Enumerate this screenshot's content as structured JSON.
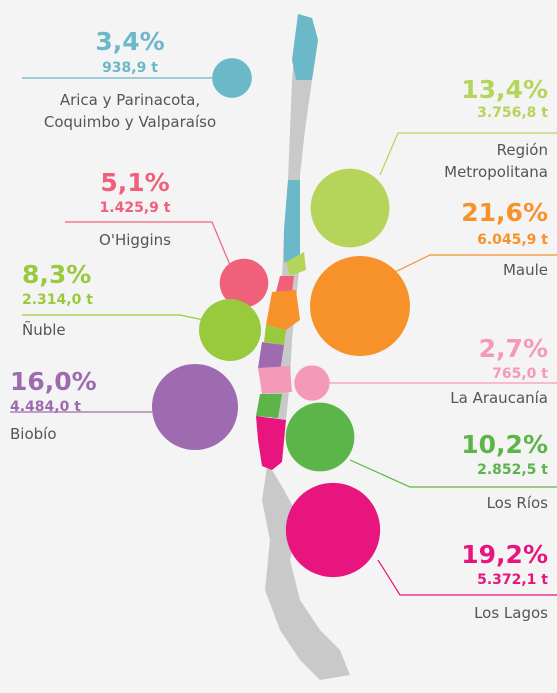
{
  "chart_data": {
    "type": "bubble",
    "categories": [
      "Arica y Parinacota,\nCoquimbo y Valparaíso",
      "Región\nMetropolitana",
      "O'Higgins",
      "Maule",
      "Ñuble",
      "La Araucanía",
      "Biobío",
      "Los Ríos",
      "Los Lagos"
    ],
    "values": [
      3.4,
      13.4,
      5.1,
      21.6,
      8.3,
      2.7,
      16.0,
      10.2,
      19.2
    ],
    "value_labels": [
      "3,4%",
      "13,4%",
      "5,1%",
      "21,6%",
      "8,3%",
      "2,7%",
      "16,0%",
      "10,2%",
      "19,2%"
    ],
    "sizes": [
      938.9,
      3756.8,
      1425.9,
      6045.9,
      2314.0,
      765.0,
      4484.0,
      2852.5,
      5372.1
    ],
    "size_labels": [
      "938,9 t",
      "3.756,8 t",
      "1.425,9 t",
      "6.045,9 t",
      "2.314,0 t",
      "765,0 t",
      "4.484,0 t",
      "2.852,5 t",
      "5.372,1 t"
    ],
    "colors": [
      "#6bb8c9",
      "#b5d55a",
      "#f0607a",
      "#f7922b",
      "#99c93c",
      "#f49ab8",
      "#9e6bb0",
      "#5bb548",
      "#e8157f"
    ]
  }
}
